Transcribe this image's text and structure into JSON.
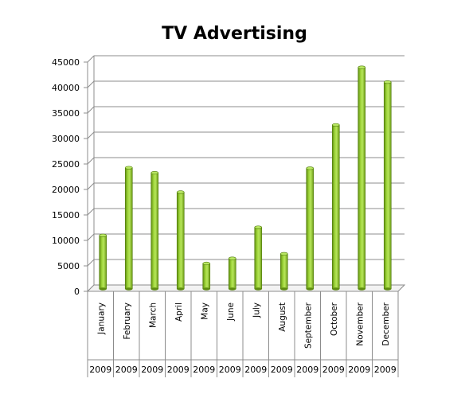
{
  "chart_data": {
    "type": "bar",
    "title": "TV Advertising",
    "categories": [
      "January",
      "February",
      "March",
      "April",
      "May",
      "June",
      "July",
      "August",
      "September",
      "October",
      "November",
      "December"
    ],
    "group_labels": [
      "2009",
      "2009",
      "2009",
      "2009",
      "2009",
      "2009",
      "2009",
      "2009",
      "2009",
      "2009",
      "2009",
      "2009"
    ],
    "values": [
      10500,
      23800,
      22800,
      19000,
      5000,
      6000,
      12100,
      6900,
      23700,
      32200,
      43500,
      40600
    ],
    "ylim": [
      0,
      45000
    ],
    "yticks": [
      "0",
      "5000",
      "10000",
      "15000",
      "20000",
      "25000",
      "30000",
      "35000",
      "40000",
      "45000"
    ],
    "xlabel": "",
    "ylabel": "",
    "grid": true,
    "legend": "none",
    "bar_color": "#8dc21f"
  }
}
